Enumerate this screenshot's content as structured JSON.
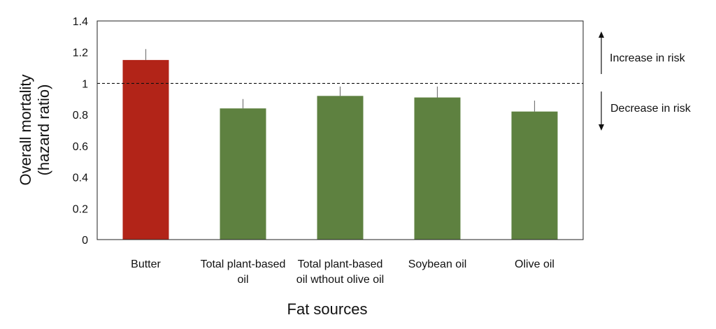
{
  "chart_data": {
    "type": "bar",
    "title": "",
    "xlabel": "Fat sources",
    "ylabel": [
      "Overall mortality",
      "(hazard ratio)"
    ],
    "ylim": [
      0,
      1.4
    ],
    "yticks": [
      0,
      0.2,
      0.4,
      0.6,
      0.8,
      1,
      1.2,
      1.4
    ],
    "ytick_labels": [
      "0",
      "0.2",
      "0.4",
      "0.6",
      "0.8",
      "1",
      "1.2",
      "1.4"
    ],
    "reference_line": 1,
    "categories": [
      [
        "Butter"
      ],
      [
        "Total plant-based",
        "oil"
      ],
      [
        "Total plant-based",
        "oil wthout olive oil"
      ],
      [
        "Soybean oil"
      ],
      [
        "Olive oil"
      ]
    ],
    "values": [
      1.15,
      0.84,
      0.92,
      0.91,
      0.82
    ],
    "error_upper": [
      1.22,
      0.9,
      0.98,
      0.98,
      0.89
    ],
    "bar_colors": [
      "#b22418",
      "#5e8140",
      "#5e8140",
      "#5e8140",
      "#5e8140"
    ],
    "grid": false,
    "legend": "none",
    "annotations": {
      "increase": "Increase in risk",
      "decrease": "Decrease in risk"
    }
  }
}
